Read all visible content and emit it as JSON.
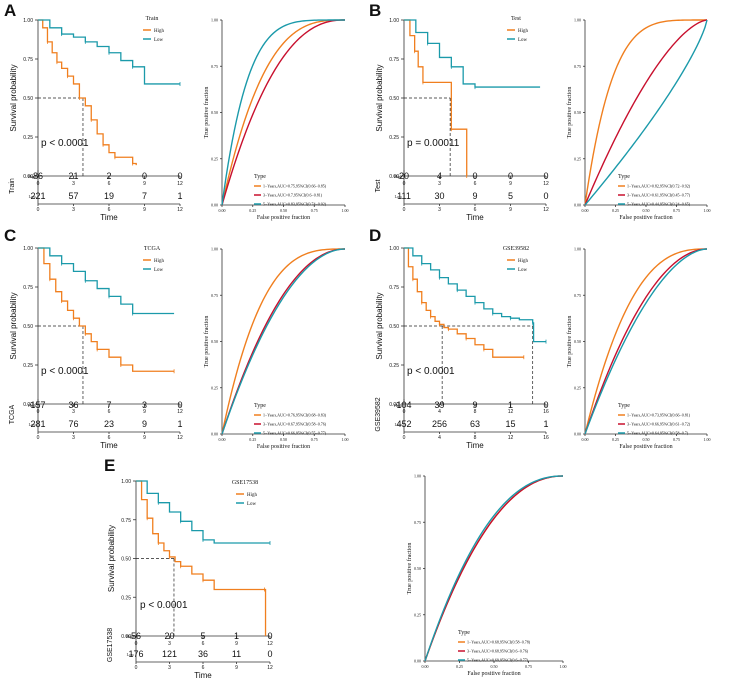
{
  "colors": {
    "high": "#F07F1F",
    "low": "#1B9AAA",
    "red": "#C8102E",
    "axis": "#333333",
    "dash": "#222222"
  },
  "ticks": {
    "surv_y": [
      "0.00",
      "0.25",
      "0.50",
      "0.75",
      "1.00"
    ],
    "roc": [
      "0.00",
      "0.25",
      "0.50",
      "0.75",
      "1.00"
    ],
    "risk_row_labels": [
      "High",
      "Low"
    ]
  },
  "text": {
    "survival_ylabel": "Survival probability",
    "time_label": "Time",
    "roc_xlabel": "False positive fraction",
    "roc_ylabel": "True positive fraction",
    "legend_type": "Type",
    "legend_high": "High",
    "legend_low": "Low"
  },
  "chart_data": [
    {
      "panel": "A",
      "type": "line",
      "subtype": "kaplan-meier",
      "legend_title": "Train",
      "pvalue": "p < 0.0001",
      "x_ticks": [
        "0",
        "3",
        "6",
        "9",
        "12"
      ],
      "xlim": [
        0,
        12
      ],
      "ylim": [
        0,
        1
      ],
      "median_time": 3.8,
      "series": [
        {
          "name": "High",
          "points": [
            [
              0,
              1.0
            ],
            [
              0.4,
              0.95
            ],
            [
              0.8,
              0.86
            ],
            [
              1.2,
              0.79
            ],
            [
              1.6,
              0.73
            ],
            [
              2.0,
              0.69
            ],
            [
              2.5,
              0.64
            ],
            [
              3.0,
              0.59
            ],
            [
              3.5,
              0.5
            ],
            [
              4.0,
              0.45
            ],
            [
              4.5,
              0.36
            ],
            [
              5.0,
              0.27
            ],
            [
              5.5,
              0.2
            ],
            [
              6.0,
              0.15
            ],
            [
              6.5,
              0.12
            ],
            [
              7.5,
              0.12
            ],
            [
              8.0,
              0.08
            ],
            [
              8.3,
              0.07
            ]
          ]
        },
        {
          "name": "Low",
          "points": [
            [
              0,
              1.0
            ],
            [
              1.0,
              0.95
            ],
            [
              2.0,
              0.91
            ],
            [
              3.0,
              0.89
            ],
            [
              4.0,
              0.86
            ],
            [
              5.0,
              0.83
            ],
            [
              6.0,
              0.79
            ],
            [
              7.0,
              0.74
            ],
            [
              8.0,
              0.7
            ],
            [
              9.0,
              0.59
            ],
            [
              12.0,
              0.59
            ]
          ]
        }
      ],
      "risk_table": {
        "label": "Train",
        "High": [
          "86",
          "21",
          "2",
          "0",
          "0"
        ],
        "Low": [
          "221",
          "57",
          "19",
          "7",
          "1"
        ]
      }
    },
    {
      "panel": "A",
      "type": "line",
      "subtype": "roc",
      "xlim": [
        0,
        1
      ],
      "ylim": [
        0,
        1
      ],
      "series": [
        {
          "name": "1-Years",
          "color": "high",
          "auc": 0.75,
          "label": "1−Years,AUC=0.75,95%CI(0.66−0.85)"
        },
        {
          "name": "3-Years",
          "color": "red",
          "auc": 0.7,
          "label": "3−Years,AUC=0.7,95%CI(0.6−0.81)"
        },
        {
          "name": "5-Years",
          "color": "low",
          "auc": 0.83,
          "label": "5−Years,AUC=0.83,95%CI(0.74−0.92)"
        }
      ]
    },
    {
      "panel": "B",
      "type": "line",
      "subtype": "kaplan-meier",
      "legend_title": "Test",
      "pvalue": "p = 0.00011",
      "x_ticks": [
        "0",
        "3",
        "6",
        "9",
        "12"
      ],
      "xlim": [
        0,
        12
      ],
      "ylim": [
        0,
        1
      ],
      "median_time": 3.9,
      "series": [
        {
          "name": "High",
          "points": [
            [
              0,
              1.0
            ],
            [
              0.5,
              0.9
            ],
            [
              0.9,
              0.8
            ],
            [
              1.2,
              0.7
            ],
            [
              1.6,
              0.6
            ],
            [
              3.9,
              0.6
            ],
            [
              4.0,
              0.3
            ],
            [
              5.0,
              0.3
            ],
            [
              5.3,
              0.0
            ]
          ]
        },
        {
          "name": "Low",
          "points": [
            [
              0,
              1.0
            ],
            [
              1.0,
              0.92
            ],
            [
              2.0,
              0.85
            ],
            [
              3.0,
              0.76
            ],
            [
              4.0,
              0.7
            ],
            [
              5.0,
              0.59
            ],
            [
              6.0,
              0.57
            ],
            [
              11.5,
              0.57
            ]
          ]
        }
      ],
      "risk_table": {
        "label": "Test",
        "High": [
          "20",
          "4",
          "0",
          "0",
          "0"
        ],
        "Low": [
          "111",
          "30",
          "9",
          "5",
          "0"
        ]
      }
    },
    {
      "panel": "B",
      "type": "line",
      "subtype": "roc",
      "xlim": [
        0,
        1
      ],
      "ylim": [
        0,
        1
      ],
      "series": [
        {
          "name": "1-Years",
          "color": "high",
          "auc": 0.82,
          "label": "1−Years,AUC=0.82,95%CI(0.72−0.92)"
        },
        {
          "name": "3-Years",
          "color": "red",
          "auc": 0.61,
          "label": "3−Years,AUC=0.61,95%CI(0.45−0.77)"
        },
        {
          "name": "5-Years",
          "color": "low",
          "auc": 0.44,
          "label": "5−Years,AUC=0.44,95%CI(0.24−0.65)"
        }
      ]
    },
    {
      "panel": "C",
      "type": "line",
      "subtype": "kaplan-meier",
      "legend_title": "TCGA",
      "pvalue": "p < 0.0001",
      "x_ticks": [
        "0",
        "3",
        "6",
        "9",
        "12"
      ],
      "xlim": [
        0,
        12
      ],
      "ylim": [
        0,
        1
      ],
      "median_time": 3.8,
      "series": [
        {
          "name": "High",
          "points": [
            [
              0,
              1.0
            ],
            [
              0.5,
              0.9
            ],
            [
              1.0,
              0.8
            ],
            [
              1.5,
              0.72
            ],
            [
              2.0,
              0.66
            ],
            [
              2.5,
              0.6
            ],
            [
              3.0,
              0.55
            ],
            [
              3.5,
              0.5
            ],
            [
              4.0,
              0.45
            ],
            [
              4.5,
              0.4
            ],
            [
              5.0,
              0.35
            ],
            [
              6.0,
              0.3
            ],
            [
              7.0,
              0.25
            ],
            [
              8.0,
              0.21
            ],
            [
              11.5,
              0.21
            ]
          ]
        },
        {
          "name": "Low",
          "points": [
            [
              0,
              1.0
            ],
            [
              1.0,
              0.95
            ],
            [
              2.0,
              0.9
            ],
            [
              3.0,
              0.85
            ],
            [
              4.0,
              0.79
            ],
            [
              5.0,
              0.74
            ],
            [
              6.0,
              0.69
            ],
            [
              7.0,
              0.64
            ],
            [
              8.0,
              0.58
            ],
            [
              11.5,
              0.58
            ]
          ]
        }
      ],
      "risk_table": {
        "label": "TCGA",
        "High": [
          "157",
          "36",
          "7",
          "3",
          "0"
        ],
        "Low": [
          "281",
          "76",
          "23",
          "9",
          "1"
        ]
      }
    },
    {
      "panel": "C",
      "type": "line",
      "subtype": "roc",
      "xlim": [
        0,
        1
      ],
      "ylim": [
        0,
        1
      ],
      "series": [
        {
          "name": "1-Years",
          "color": "high",
          "auc": 0.76,
          "label": "1−Years,AUC=0.76,95%CI(0.68−0.83)"
        },
        {
          "name": "3-Years",
          "color": "red",
          "auc": 0.67,
          "label": "3−Years,AUC=0.67,95%CI(0.58−0.76)"
        },
        {
          "name": "5-Years",
          "color": "low",
          "auc": 0.66,
          "label": "5−Years,AUC=0.66,95%CI(0.55−0.77)"
        }
      ]
    },
    {
      "panel": "D",
      "type": "line",
      "subtype": "kaplan-meier",
      "legend_title": "GSE39582",
      "pvalue": "p < 0.0001",
      "x_ticks": [
        "0",
        "4",
        "8",
        "12",
        "16"
      ],
      "xlim": [
        0,
        16
      ],
      "ylim": [
        0,
        1
      ],
      "median_time": 4.3,
      "median_time_low": 14.5,
      "series": [
        {
          "name": "High",
          "points": [
            [
              0,
              1.0
            ],
            [
              0.5,
              0.88
            ],
            [
              1.0,
              0.8
            ],
            [
              1.5,
              0.72
            ],
            [
              2.0,
              0.65
            ],
            [
              2.5,
              0.6
            ],
            [
              3.0,
              0.56
            ],
            [
              3.5,
              0.53
            ],
            [
              4.0,
              0.51
            ],
            [
              4.5,
              0.49
            ],
            [
              5.0,
              0.48
            ],
            [
              6.0,
              0.45
            ],
            [
              7.0,
              0.42
            ],
            [
              8.0,
              0.38
            ],
            [
              9.0,
              0.35
            ],
            [
              10.0,
              0.3
            ],
            [
              13.5,
              0.3
            ]
          ]
        },
        {
          "name": "Low",
          "points": [
            [
              0,
              1.0
            ],
            [
              1.0,
              0.95
            ],
            [
              2.0,
              0.9
            ],
            [
              3.0,
              0.86
            ],
            [
              4.0,
              0.81
            ],
            [
              5.0,
              0.77
            ],
            [
              6.0,
              0.73
            ],
            [
              7.0,
              0.69
            ],
            [
              8.0,
              0.65
            ],
            [
              9.0,
              0.61
            ],
            [
              10.0,
              0.58
            ],
            [
              11.0,
              0.56
            ],
            [
              12.0,
              0.55
            ],
            [
              13.0,
              0.54
            ],
            [
              14.5,
              0.52
            ],
            [
              14.6,
              0.4
            ],
            [
              16.0,
              0.4
            ]
          ]
        }
      ],
      "risk_table": {
        "label": "GSE39582",
        "High": [
          "104",
          "39",
          "9",
          "1",
          "0"
        ],
        "Low": [
          "452",
          "256",
          "63",
          "15",
          "1"
        ]
      }
    },
    {
      "panel": "D",
      "type": "line",
      "subtype": "roc",
      "xlim": [
        0,
        1
      ],
      "ylim": [
        0,
        1
      ],
      "series": [
        {
          "name": "1-Years",
          "color": "high",
          "auc": 0.73,
          "label": "1−Years,AUC=0.73,95%CI(0.66−0.81)"
        },
        {
          "name": "3-Years",
          "color": "red",
          "auc": 0.66,
          "label": "3−Years,AUC=0.66,95%CI(0.61−0.72)"
        },
        {
          "name": "5-Years",
          "color": "low",
          "auc": 0.64,
          "label": "5−Years,AUC=0.64,95%CI(0.58−0.7)"
        }
      ]
    },
    {
      "panel": "E",
      "type": "line",
      "subtype": "kaplan-meier",
      "legend_title": "GSE17538",
      "pvalue": "p < 0.0001",
      "x_ticks": [
        "0",
        "3",
        "6",
        "9",
        "12"
      ],
      "xlim": [
        0,
        12
      ],
      "ylim": [
        0,
        1
      ],
      "median_time": 3.4,
      "series": [
        {
          "name": "High",
          "points": [
            [
              0,
              1.0
            ],
            [
              0.5,
              0.88
            ],
            [
              1.0,
              0.76
            ],
            [
              1.5,
              0.66
            ],
            [
              2.0,
              0.6
            ],
            [
              2.5,
              0.55
            ],
            [
              3.0,
              0.51
            ],
            [
              3.5,
              0.48
            ],
            [
              4.0,
              0.45
            ],
            [
              5.0,
              0.4
            ],
            [
              6.0,
              0.36
            ],
            [
              7.0,
              0.3
            ],
            [
              11.5,
              0.3
            ],
            [
              11.6,
              0.0
            ]
          ]
        },
        {
          "name": "Low",
          "points": [
            [
              0,
              1.0
            ],
            [
              1.0,
              0.92
            ],
            [
              2.0,
              0.86
            ],
            [
              3.0,
              0.8
            ],
            [
              4.0,
              0.74
            ],
            [
              5.0,
              0.68
            ],
            [
              6.0,
              0.62
            ],
            [
              7.0,
              0.6
            ],
            [
              12.0,
              0.6
            ]
          ]
        }
      ],
      "risk_table": {
        "label": "GSE17538",
        "High": [
          "56",
          "20",
          "5",
          "1",
          "0"
        ],
        "Low": [
          "176",
          "121",
          "36",
          "11",
          "0"
        ]
      }
    },
    {
      "panel": "E",
      "type": "line",
      "subtype": "roc",
      "xlim": [
        0,
        1
      ],
      "ylim": [
        0,
        1
      ],
      "series": [
        {
          "name": "1-Years",
          "color": "high",
          "auc": 0.68,
          "label": "1−Years,AUC=0.68,95%CI(0.58−0.78)"
        },
        {
          "name": "3-Years",
          "color": "red",
          "auc": 0.68,
          "label": "3−Years,AUC=0.68,95%CI(0.6−0.76)"
        },
        {
          "name": "5-Years",
          "color": "low",
          "auc": 0.69,
          "label": "5−Years,AUC=0.69,95%CI(0.6−0.77)"
        }
      ]
    }
  ]
}
